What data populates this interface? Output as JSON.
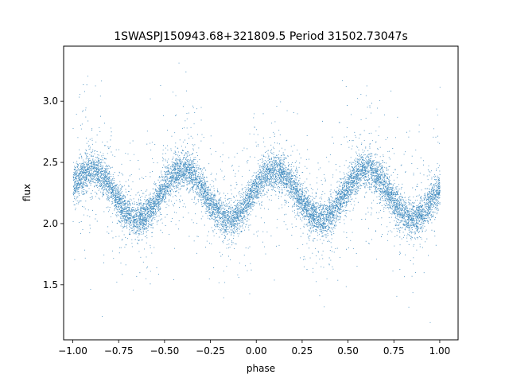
{
  "chart_data": {
    "type": "scatter",
    "title": "1SWASPJ150943.68+321809.5 Period 31502.73047s",
    "xlabel": "phase",
    "ylabel": "flux",
    "xlim": [
      -1.05,
      1.1
    ],
    "ylim": [
      1.05,
      3.45
    ],
    "x_ticks": [
      -1.0,
      -0.75,
      -0.5,
      -0.25,
      0.0,
      0.25,
      0.5,
      0.75,
      1.0
    ],
    "x_tick_labels": [
      "−1.00",
      "−0.75",
      "−0.50",
      "−0.25",
      "0.00",
      "0.25",
      "0.50",
      "0.75",
      "1.00"
    ],
    "y_ticks": [
      1.5,
      2.0,
      2.5,
      3.0
    ],
    "y_tick_labels": [
      "1.5",
      "2.0",
      "2.5",
      "3.0"
    ],
    "grid": false,
    "marker_color": "#1f77b4",
    "series": [
      {
        "x_range": [
          -1.0,
          1.0
        ],
        "model": "sinusoid",
        "mean_flux": 2.24,
        "amplitude": 0.2,
        "cycles_per_phase_unit": 2,
        "peak_phases": [
          -0.9,
          -0.43,
          0.09,
          0.57
        ],
        "trough_phases": [
          -0.67,
          -0.18,
          0.32,
          0.82
        ],
        "scatter_sigma": 0.12,
        "point_count": 12000
      }
    ]
  }
}
